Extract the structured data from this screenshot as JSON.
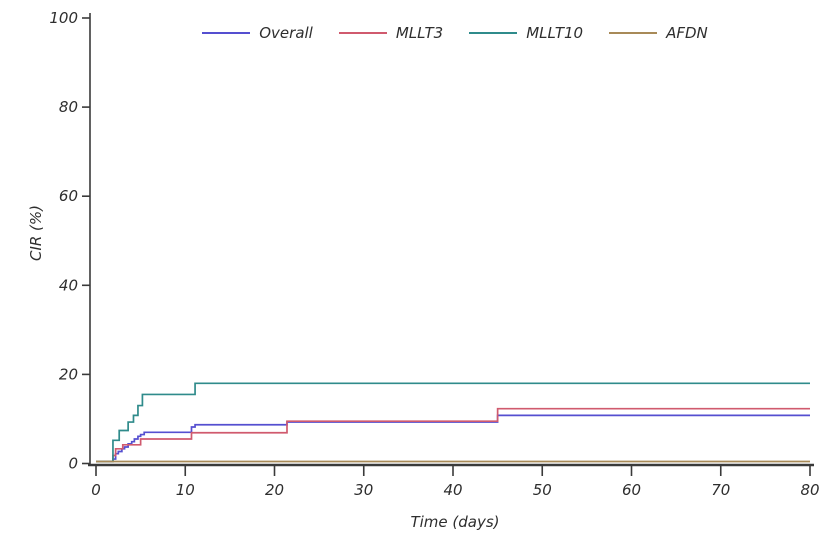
{
  "page": {
    "background": "#ffffff"
  },
  "chart_data": {
    "type": "line",
    "style": "step",
    "title": "",
    "xlabel": "Time (days)",
    "ylabel": "CIR (%)",
    "xlim": [
      0,
      80
    ],
    "ylim": [
      0,
      100
    ],
    "xticks": [
      0,
      10,
      20,
      30,
      40,
      50,
      60,
      70,
      80
    ],
    "yticks": [
      0,
      20,
      40,
      60,
      80,
      100
    ],
    "grid": false,
    "legend_position": "top-center",
    "axis_color": "#3a3a3a",
    "text_color": "#2e2e2e",
    "series": [
      {
        "name": "Overall",
        "color": "#554fd0",
        "points": [
          [
            0,
            0
          ],
          [
            1.9,
            1.0
          ],
          [
            2.2,
            2.2
          ],
          [
            2.5,
            2.7
          ],
          [
            2.9,
            3.3
          ],
          [
            3.2,
            3.7
          ],
          [
            3.6,
            4.4
          ],
          [
            4.0,
            4.9
          ],
          [
            4.3,
            5.5
          ],
          [
            4.7,
            6.1
          ],
          [
            5.0,
            6.5
          ],
          [
            5.4,
            7.0
          ],
          [
            10.7,
            8.2
          ],
          [
            11.1,
            8.7
          ],
          [
            21.4,
            9.3
          ],
          [
            45,
            10.8
          ],
          [
            80,
            10.8
          ]
        ]
      },
      {
        "name": "MLLT3",
        "color": "#d05a6e",
        "points": [
          [
            0,
            0
          ],
          [
            1.9,
            1.8
          ],
          [
            2.2,
            3.3
          ],
          [
            3.0,
            4.2
          ],
          [
            5.0,
            5.5
          ],
          [
            10.7,
            6.9
          ],
          [
            21.4,
            9.5
          ],
          [
            45,
            12.3
          ],
          [
            80,
            12.3
          ]
        ]
      },
      {
        "name": "MLLT10",
        "color": "#2f8b8b",
        "points": [
          [
            0,
            0
          ],
          [
            1.9,
            5.2
          ],
          [
            2.6,
            7.4
          ],
          [
            3.6,
            9.3
          ],
          [
            4.2,
            10.8
          ],
          [
            4.7,
            13.0
          ],
          [
            5.2,
            15.5
          ],
          [
            11.1,
            18.0
          ],
          [
            80,
            18.0
          ]
        ]
      },
      {
        "name": "AFDN",
        "color": "#a88a58",
        "points": [
          [
            0,
            0
          ],
          [
            80,
            0
          ]
        ]
      }
    ]
  }
}
